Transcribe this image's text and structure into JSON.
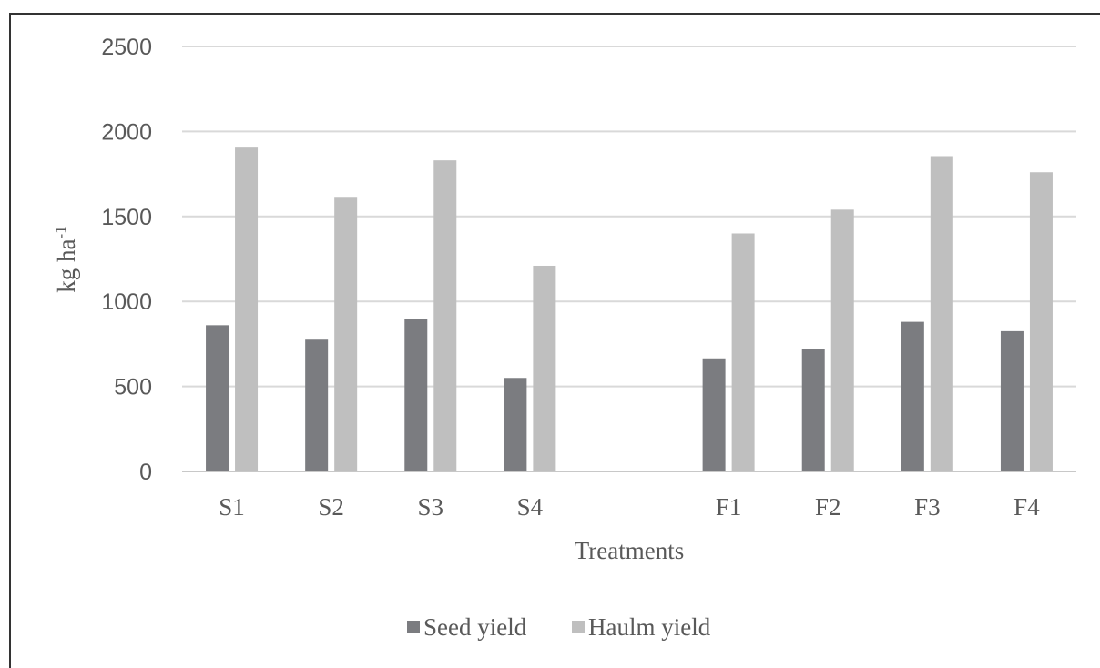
{
  "chart_data": {
    "type": "bar",
    "categories": [
      "S1",
      "S2",
      "S3",
      "S4",
      "",
      "F1",
      "F2",
      "F3",
      "F4"
    ],
    "series": [
      {
        "name": "Seed yield",
        "values": [
          860,
          775,
          895,
          550,
          null,
          665,
          720,
          880,
          825
        ],
        "color": "#7b7c80"
      },
      {
        "name": "Haulm yield",
        "values": [
          1905,
          1610,
          1830,
          1210,
          null,
          1400,
          1540,
          1855,
          1760
        ],
        "color": "#bfbfbf"
      }
    ],
    "title": "",
    "xlabel": "Treatments",
    "ylabel_main": "kg ha",
    "ylabel_sup": "-1",
    "ylim": [
      0,
      2500
    ],
    "yticks": [
      "0",
      "500",
      "1000",
      "1500",
      "2000",
      "2500"
    ],
    "grid": true,
    "legend_position": "bottom"
  }
}
